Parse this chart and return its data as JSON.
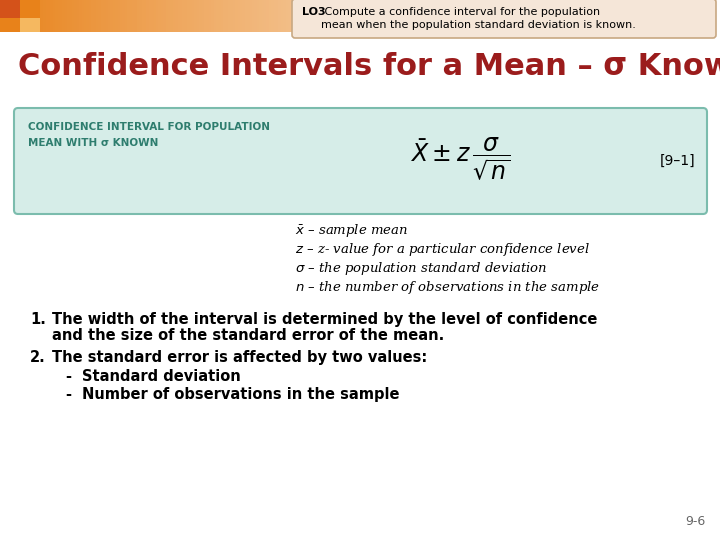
{
  "background_color": "#ffffff",
  "title": "Confidence Intervals for a Mean – σ Known",
  "title_color": "#9b1c1c",
  "title_fontsize": 22,
  "lo3_bold": "LO3",
  "lo3_text": " Compute a confidence interval for the population\nmean when the population standard deviation is known.",
  "lo3_box_bg": "#f5e6d8",
  "lo3_box_border": "#c8a882",
  "formula_box_bg": "#d6ede8",
  "formula_box_border": "#7bbcad",
  "formula_label_line1": "CONFIDENCE INTERVAL FOR POPULATION",
  "formula_label_line2": "MEAN WITH σ KNOWN",
  "formula_label_color": "#2e7d6e",
  "formula_ref": "[9–1]",
  "def1": "̅x – sample mean",
  "def2": "z – z- value for a particular confidence level",
  "def3": "σ – the population standard deviation",
  "def4": "n – the number of observations in the sample",
  "bullet1a": "The width of the interval is determined by the level of confidence",
  "bullet1b": "and the size of the standard error of the mean.",
  "bullet2": "The standard error is affected by two values:",
  "sub1": "Standard deviation",
  "sub2": "Number of observations in the sample",
  "page_num": "9-6",
  "grad_orange_dark": "#e8821a",
  "grad_orange_light": "#fde0b0",
  "sq1_color": "#d4521a",
  "sq2_color": "#e8821a",
  "sq3_color": "#e8821a",
  "sq4_color": "#f5b860"
}
